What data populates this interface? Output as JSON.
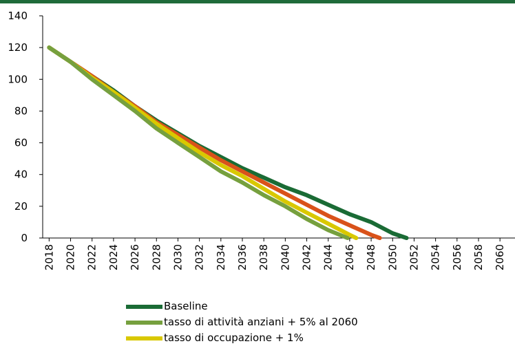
{
  "colors": {
    "top_bar": "#1f6b3a"
  },
  "chart_data": {
    "type": "line",
    "title": "",
    "xlabel": "",
    "ylabel": "",
    "xlim": [
      2017.4,
      2061.4
    ],
    "ylim": [
      0,
      140
    ],
    "yticks": [
      0,
      20,
      40,
      60,
      80,
      100,
      120,
      140
    ],
    "y_tick_labels": [
      "0",
      "20",
      "40",
      "60",
      "80",
      "100",
      "120",
      "140"
    ],
    "xticks": [
      2018,
      2020,
      2022,
      2024,
      2026,
      2028,
      2030,
      2032,
      2034,
      2036,
      2038,
      2040,
      2042,
      2044,
      2046,
      2048,
      2050,
      2052,
      2054,
      2056,
      2058,
      2060
    ],
    "x_tick_labels": [
      "2018",
      "2020",
      "2022",
      "2024",
      "2026",
      "2028",
      "2030",
      "2032",
      "2034",
      "2036",
      "2038",
      "2040",
      "2042",
      "2044",
      "2046",
      "2048",
      "2050",
      "2052",
      "2054",
      "2056",
      "2058",
      "2060"
    ],
    "grid": false,
    "legend_position": "bottom",
    "series": [
      {
        "name": "Baseline",
        "color": "#1a6b35",
        "x": [
          2018,
          2020,
          2022,
          2024,
          2026,
          2028,
          2030,
          2032,
          2034,
          2036,
          2038,
          2040,
          2042,
          2044,
          2046,
          2048,
          2050,
          2051.3
        ],
        "y": [
          120,
          111,
          102,
          93,
          83,
          74,
          66,
          58,
          51,
          44,
          38,
          32,
          27,
          21,
          15,
          10,
          3,
          0
        ]
      },
      {
        "name": "tasso di attività anziani + 5% al 2060",
        "color": "#76a03e",
        "x": [
          2018,
          2020,
          2022,
          2024,
          2026,
          2028,
          2030,
          2032,
          2034,
          2036,
          2038,
          2040,
          2042,
          2044,
          2045.8
        ],
        "y": [
          120,
          111,
          100,
          90,
          80,
          69,
          60,
          51,
          42,
          35,
          27,
          20,
          12,
          5,
          0
        ]
      },
      {
        "name": "tasso di occupazione + 1%",
        "color": "#d9c800",
        "x": [
          2018,
          2020,
          2022,
          2024,
          2026,
          2028,
          2030,
          2032,
          2034,
          2036,
          2038,
          2040,
          2042,
          2044,
          2046,
          2046.6
        ],
        "y": [
          120,
          111,
          101,
          92,
          82,
          72,
          63,
          54,
          46,
          39,
          31,
          23,
          16,
          9,
          2,
          0
        ]
      },
      {
        "name": "",
        "color": "#d9521a",
        "x": [
          2018,
          2020,
          2022,
          2024,
          2026,
          2028,
          2030,
          2032,
          2034,
          2036,
          2038,
          2040,
          2042,
          2044,
          2046,
          2048,
          2048.8
        ],
        "y": [
          120,
          111,
          102,
          92,
          83,
          73,
          65,
          57,
          49,
          42,
          35,
          28,
          21,
          14,
          8,
          2,
          0
        ]
      }
    ]
  }
}
